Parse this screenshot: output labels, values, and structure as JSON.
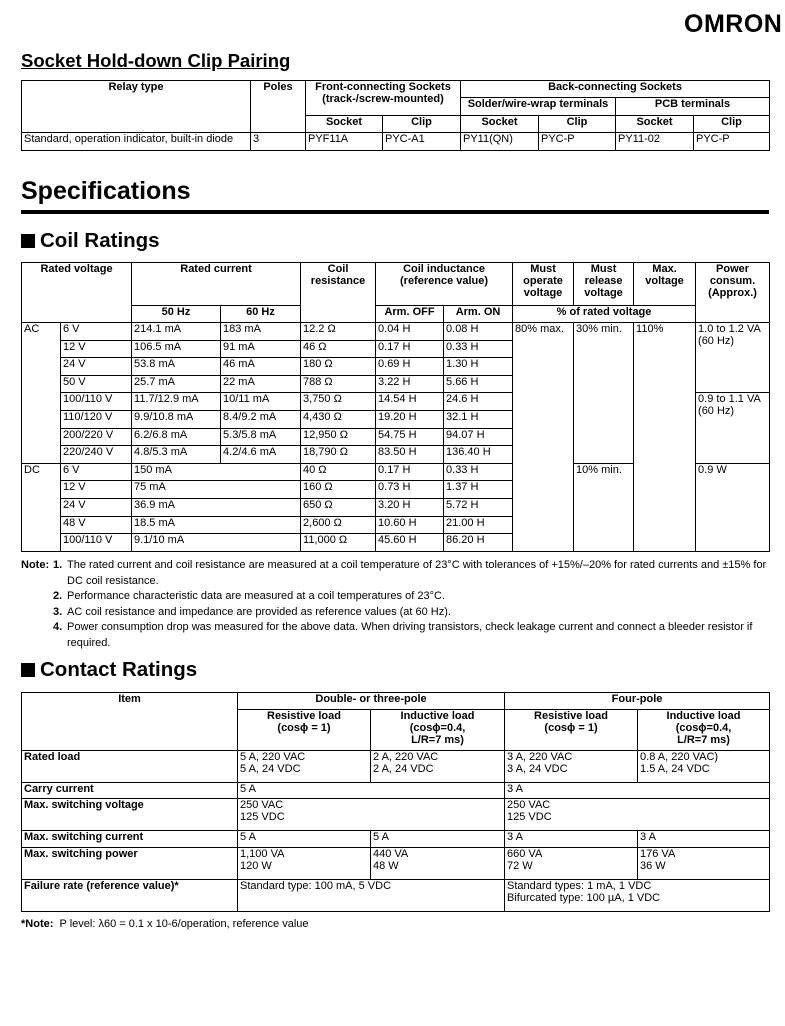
{
  "logo": "OMRON",
  "clip": {
    "title": "Socket Hold-down Clip Pairing",
    "h": {
      "relay": "Relay type",
      "poles": "Poles",
      "front": "Front-connecting Sockets",
      "front2": "(track-/screw-mounted)",
      "back": "Back-connecting Sockets",
      "solder": "Solder/wire-wrap terminals",
      "pcb": "PCB terminals",
      "socket": "Socket",
      "clip": "Clip"
    },
    "row": [
      "Standard, operation indicator, built-in diode",
      "3",
      "PYF11A",
      "PYC-A1",
      "PY11(QN)",
      "PYC-P",
      "PY11-02",
      "PYC-P"
    ]
  },
  "specs_title": "Specifications",
  "coil": {
    "title": "Coil Ratings",
    "h": {
      "rv": "Rated voltage",
      "rc": "Rated current",
      "hz50": "50 Hz",
      "hz60": "60 Hz",
      "res1": "Coil",
      "res2": "resistance",
      "ind1": "Coil inductance",
      "ind2": "(reference value)",
      "off": "Arm. OFF",
      "on": "Arm. ON",
      "mo1": "Must",
      "mo2": "operate",
      "mo3": "voltage",
      "mr1": "Must",
      "mr2": "release",
      "mr3": "voltage",
      "mx1": "Max.",
      "mx2": "voltage",
      "pw1": "Power",
      "pw2": "consum.",
      "pw3": "(Approx.)",
      "pct": "% of rated voltage"
    },
    "ac_label": "AC",
    "dc_label": "DC",
    "ac": [
      [
        "6 V",
        "214.1 mA",
        "183 mA",
        "12.2 Ω",
        "0.04 H",
        "0.08 H"
      ],
      [
        "12 V",
        "106.5 mA",
        "91 mA",
        "46 Ω",
        "0.17 H",
        "0.33 H"
      ],
      [
        "24 V",
        "53.8 mA",
        "46 mA",
        "180 Ω",
        "0.69 H",
        "1.30 H"
      ],
      [
        "50 V",
        "25.7 mA",
        "22 mA",
        "788 Ω",
        "3.22 H",
        "5.66 H"
      ],
      [
        "100/110 V",
        "11.7/12.9 mA",
        "10/11 mA",
        "3,750 Ω",
        "14.54 H",
        "24.6 H"
      ],
      [
        "110/120 V",
        "9.9/10.8 mA",
        "8.4/9.2 mA",
        "4,430 Ω",
        "19.20 H",
        "32.1 H"
      ],
      [
        "200/220 V",
        "6.2/6.8 mA",
        "5.3/5.8 mA",
        "12,950 Ω",
        "54.75 H",
        "94.07 H"
      ],
      [
        "220/240 V",
        "4.8/5.3 mA",
        "4.2/4.6 mA",
        "18,790 Ω",
        "83.50 H",
        "136.40 H"
      ]
    ],
    "dc": [
      [
        "6 V",
        "150 mA",
        "40 Ω",
        "0.17 H",
        "0.33 H"
      ],
      [
        "12 V",
        "75 mA",
        "160 Ω",
        "0.73 H",
        "1.37 H"
      ],
      [
        "24 V",
        "36.9 mA",
        "650 Ω",
        "3.20 H",
        "5.72 H"
      ],
      [
        "48 V",
        "18.5 mA",
        "2,600 Ω",
        "10.60 H",
        "21.00 H"
      ],
      [
        "100/110 V",
        "9.1/10 mA",
        "11,000 Ω",
        "45.60 H",
        "86.20 H"
      ]
    ],
    "must_operate": "80% max.",
    "must_release_ac": "30%  min.",
    "must_release_dc": "10%  min.",
    "max_voltage": "110%",
    "power_ac1a": "1.0 to 1.2 VA",
    "power_ac1b": "(60 Hz)",
    "power_ac2a": "0.9 to 1.1 VA",
    "power_ac2b": "(60 Hz)",
    "power_dc": "0.9 W"
  },
  "notes": {
    "label": "Note:",
    "items": [
      "The rated current and coil resistance are measured at a coil temperature of 23°C with tolerances of +15%/–20% for rated currents and ±15% for DC coil resistance.",
      "Performance characteristic data are measured at a coil temperatures of 23°C.",
      "AC coil resistance and impedance are provided as reference values (at 60 Hz).",
      "Power consumption drop was measured for the above data. When driving transistors, check leakage current and connect a bleeder resistor if required."
    ],
    "nums": [
      "1.",
      "2.",
      "3.",
      "4."
    ]
  },
  "contact": {
    "title": "Contact Ratings",
    "h": {
      "item": "Item",
      "dbl": "Double- or three-pole",
      "four": "Four-pole",
      "res1": "Resistive load",
      "res2": "(cosϕ = 1)",
      "ind1": "Inductive load",
      "ind2": "(cosϕ=0.4,",
      "ind3": "L/R=7 ms)"
    },
    "rated": {
      "label": "Rated load",
      "a1": "5 A, 220 VAC",
      "a2": "5 A, 24 VDC",
      "b1": "2 A, 220 VAC",
      "b2": "2 A, 24 VDC",
      "c1": "3 A, 220 VAC",
      "c2": "3 A, 24 VDC",
      "d1": "0.8 A, 220 VAC)",
      "d2": "1.5 A, 24 VDC"
    },
    "carry": {
      "label": "Carry current",
      "a": "5 A",
      "c": "3 A"
    },
    "swv": {
      "label": "Max. switching voltage",
      "a1": "250 VAC",
      "a2": "125 VDC",
      "c1": "250 VAC",
      "c2": "125 VDC"
    },
    "swc": {
      "label": "Max. switching current",
      "a": "5 A",
      "b": "5 A",
      "c": "3 A",
      "d": "3 A"
    },
    "swp": {
      "label": "Max. switching power",
      "a1": "1,100 VA",
      "a2": "120 W",
      "b1": "440 VA",
      "b2": "48 W",
      "c1": "660 VA",
      "c2": "72 W",
      "d1": "176 VA",
      "d2": "36 W"
    },
    "fail": {
      "label": "Failure rate (reference value)*",
      "a": "Standard type: 100 mA, 5 VDC",
      "c1": "Standard types: 1 mA, 1 VDC",
      "c2": "Bifurcated type: 100 µA, 1 VDC"
    }
  },
  "footnote": {
    "label": "*Note:",
    "text": "P level: λ60 = 0.1 x 10-6/operation, reference value"
  }
}
